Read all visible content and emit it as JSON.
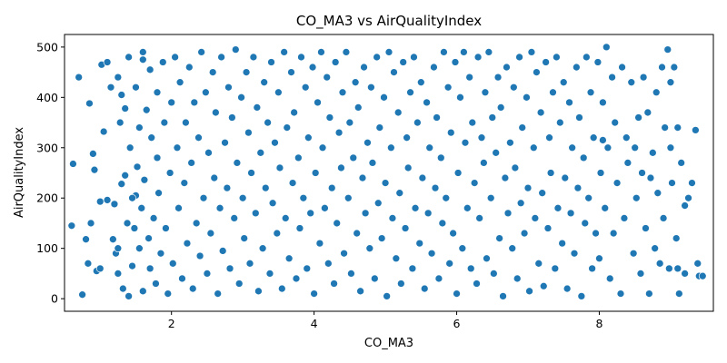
{
  "chart_data": {
    "type": "scatter",
    "title": "CO_MA3 vs AirQualityIndex",
    "xlabel": "CO_MA3",
    "ylabel": "AirQualityIndex",
    "xlim": [
      0.5,
      9.6
    ],
    "ylim": [
      -25,
      525
    ],
    "xticks": [
      2,
      4,
      6,
      8
    ],
    "yticks": [
      0,
      100,
      200,
      300,
      400,
      500
    ],
    "grid": false,
    "marker_color": "#1f77b4",
    "marker_edge_color": "#ffffff",
    "points": [
      [
        0.6,
        145
      ],
      [
        0.62,
        268
      ],
      [
        0.7,
        440
      ],
      [
        0.75,
        8
      ],
      [
        0.8,
        118
      ],
      [
        0.83,
        70
      ],
      [
        0.85,
        388
      ],
      [
        0.87,
        150
      ],
      [
        0.9,
        288
      ],
      [
        0.92,
        256
      ],
      [
        0.95,
        55
      ],
      [
        1.0,
        60
      ],
      [
        1.02,
        465
      ],
      [
        1.0,
        193
      ],
      [
        1.05,
        332
      ],
      [
        1.1,
        470
      ],
      [
        1.1,
        196
      ],
      [
        1.15,
        420
      ],
      [
        1.18,
        118
      ],
      [
        1.2,
        188
      ],
      [
        1.22,
        90
      ],
      [
        1.25,
        440
      ],
      [
        1.25,
        50
      ],
      [
        1.28,
        350
      ],
      [
        1.3,
        228
      ],
      [
        1.3,
        405
      ],
      [
        1.32,
        20
      ],
      [
        1.35,
        245
      ],
      [
        1.35,
        378
      ],
      [
        1.38,
        150
      ],
      [
        1.4,
        480
      ],
      [
        1.4,
        5
      ],
      [
        1.42,
        300
      ],
      [
        1.45,
        65
      ],
      [
        1.48,
        140
      ],
      [
        1.5,
        205
      ],
      [
        1.5,
        420
      ],
      [
        1.52,
        262
      ],
      [
        1.55,
        340
      ],
      [
        1.55,
        100
      ],
      [
        1.58,
        180
      ],
      [
        1.6,
        15
      ],
      [
        1.6,
        490
      ],
      [
        1.62,
        236
      ],
      [
        1.65,
        375
      ],
      [
        1.68,
        120
      ],
      [
        1.7,
        455
      ],
      [
        1.7,
        60
      ],
      [
        1.72,
        320
      ],
      [
        1.75,
        160
      ],
      [
        1.78,
        30
      ],
      [
        1.8,
        410
      ],
      [
        1.8,
        280
      ],
      [
        1.82,
        210
      ],
      [
        1.85,
        90
      ],
      [
        1.88,
        470
      ],
      [
        1.9,
        350
      ],
      [
        1.92,
        140
      ],
      [
        1.95,
        10
      ],
      [
        1.98,
        250
      ],
      [
        2.0,
        390
      ],
      [
        2.02,
        70
      ],
      [
        2.05,
        480
      ],
      [
        2.08,
        300
      ],
      [
        2.1,
        180
      ],
      [
        2.12,
        430
      ],
      [
        2.15,
        40
      ],
      [
        2.18,
        230
      ],
      [
        2.2,
        350
      ],
      [
        2.22,
        110
      ],
      [
        2.25,
        460
      ],
      [
        2.28,
        270
      ],
      [
        2.3,
        20
      ],
      [
        2.32,
        390
      ],
      [
        2.35,
        150
      ],
      [
        2.38,
        320
      ],
      [
        2.4,
        85
      ],
      [
        2.42,
        490
      ],
      [
        2.45,
        200
      ],
      [
        2.48,
        410
      ],
      [
        2.5,
        50
      ],
      [
        2.52,
        290
      ],
      [
        2.55,
        130
      ],
      [
        2.58,
        450
      ],
      [
        2.6,
        240
      ],
      [
        2.62,
        370
      ],
      [
        2.65,
        10
      ],
      [
        2.68,
        180
      ],
      [
        2.7,
        480
      ],
      [
        2.72,
        95
      ],
      [
        2.75,
        310
      ],
      [
        2.78,
        220
      ],
      [
        2.8,
        420
      ],
      [
        2.82,
        60
      ],
      [
        2.85,
        360
      ],
      [
        2.88,
        160
      ],
      [
        2.9,
        495
      ],
      [
        2.92,
        270
      ],
      [
        2.95,
        30
      ],
      [
        2.98,
        400
      ],
      [
        3.0,
        200
      ],
      [
        3.02,
        120
      ],
      [
        3.05,
        450
      ],
      [
        3.08,
        330
      ],
      [
        3.1,
        70
      ],
      [
        3.12,
        250
      ],
      [
        3.15,
        480
      ],
      [
        3.18,
        170
      ],
      [
        3.2,
        380
      ],
      [
        3.22,
        15
      ],
      [
        3.25,
        290
      ],
      [
        3.28,
        100
      ],
      [
        3.3,
        430
      ],
      [
        3.32,
        220
      ],
      [
        3.35,
        350
      ],
      [
        3.38,
        50
      ],
      [
        3.4,
        470
      ],
      [
        3.42,
        190
      ],
      [
        3.45,
        310
      ],
      [
        3.48,
        130
      ],
      [
        3.5,
        410
      ],
      [
        3.52,
        260
      ],
      [
        3.55,
        20
      ],
      [
        3.58,
        490
      ],
      [
        3.6,
        160
      ],
      [
        3.62,
        340
      ],
      [
        3.65,
        80
      ],
      [
        3.68,
        450
      ],
      [
        3.7,
        230
      ],
      [
        3.72,
        370
      ],
      [
        3.75,
        40
      ],
      [
        3.78,
        280
      ],
      [
        3.8,
        140
      ],
      [
        3.82,
        480
      ],
      [
        3.85,
        200
      ],
      [
        3.88,
        420
      ],
      [
        3.9,
        60
      ],
      [
        3.92,
        320
      ],
      [
        3.95,
        170
      ],
      [
        3.98,
        460
      ],
      [
        4.0,
        10
      ],
      [
        4.02,
        250
      ],
      [
        4.05,
        390
      ],
      [
        4.08,
        110
      ],
      [
        4.1,
        490
      ],
      [
        4.12,
        300
      ],
      [
        4.15,
        180
      ],
      [
        4.18,
        440
      ],
      [
        4.2,
        70
      ],
      [
        4.22,
        360
      ],
      [
        4.25,
        220
      ],
      [
        4.28,
        30
      ],
      [
        4.3,
        470
      ],
      [
        4.32,
        150
      ],
      [
        4.35,
        330
      ],
      [
        4.38,
        260
      ],
      [
        4.4,
        410
      ],
      [
        4.42,
        90
      ],
      [
        4.45,
        490
      ],
      [
        4.48,
        200
      ],
      [
        4.5,
        350
      ],
      [
        4.52,
        50
      ],
      [
        4.55,
        280
      ],
      [
        4.58,
        430
      ],
      [
        4.6,
        130
      ],
      [
        4.62,
        380
      ],
      [
        4.65,
        15
      ],
      [
        4.68,
        240
      ],
      [
        4.7,
        460
      ],
      [
        4.72,
        170
      ],
      [
        4.75,
        310
      ],
      [
        4.78,
        100
      ],
      [
        4.8,
        420
      ],
      [
        4.82,
        270
      ],
      [
        4.85,
        40
      ],
      [
        4.88,
        480
      ],
      [
        4.9,
        190
      ],
      [
        4.92,
        340
      ],
      [
        4.95,
        120
      ],
      [
        4.98,
        400
      ],
      [
        5.0,
        230
      ],
      [
        5.02,
        5
      ],
      [
        5.05,
        490
      ],
      [
        5.08,
        300
      ],
      [
        5.1,
        160
      ],
      [
        5.12,
        450
      ],
      [
        5.15,
        80
      ],
      [
        5.18,
        370
      ],
      [
        5.2,
        210
      ],
      [
        5.22,
        30
      ],
      [
        5.25,
        470
      ],
      [
        5.28,
        140
      ],
      [
        5.3,
        320
      ],
      [
        5.32,
        260
      ],
      [
        5.35,
        410
      ],
      [
        5.38,
        60
      ],
      [
        5.4,
        480
      ],
      [
        5.42,
        180
      ],
      [
        5.45,
        350
      ],
      [
        5.48,
        110
      ],
      [
        5.5,
        430
      ],
      [
        5.52,
        240
      ],
      [
        5.55,
        20
      ],
      [
        5.58,
        390
      ],
      [
        5.6,
        170
      ],
      [
        5.62,
        300
      ],
      [
        5.65,
        90
      ],
      [
        5.68,
        460
      ],
      [
        5.7,
        220
      ],
      [
        5.72,
        360
      ],
      [
        5.75,
        40
      ],
      [
        5.78,
        280
      ],
      [
        5.8,
        150
      ],
      [
        5.82,
        490
      ],
      [
        5.85,
        200
      ],
      [
        5.88,
        420
      ],
      [
        5.9,
        70
      ],
      [
        5.92,
        330
      ],
      [
        5.95,
        130
      ],
      [
        5.98,
        470
      ],
      [
        6.0,
        10
      ],
      [
        6.02,
        250
      ],
      [
        6.05,
        400
      ],
      [
        6.08,
        100
      ],
      [
        6.1,
        490
      ],
      [
        6.12,
        310
      ],
      [
        6.15,
        180
      ],
      [
        6.18,
        440
      ],
      [
        6.2,
        60
      ],
      [
        6.22,
        350
      ],
      [
        6.25,
        230
      ],
      [
        6.28,
        30
      ],
      [
        6.3,
        480
      ],
      [
        6.32,
        160
      ],
      [
        6.35,
        320
      ],
      [
        6.38,
        270
      ],
      [
        6.4,
        410
      ],
      [
        6.42,
        80
      ],
      [
        6.45,
        490
      ],
      [
        6.48,
        200
      ],
      [
        6.5,
        360
      ],
      [
        6.52,
        50
      ],
      [
        6.55,
        290
      ],
      [
        6.58,
        440
      ],
      [
        6.6,
        120
      ],
      [
        6.62,
        380
      ],
      [
        6.65,
        5
      ],
      [
        6.68,
        240
      ],
      [
        6.7,
        460
      ],
      [
        6.72,
        170
      ],
      [
        6.75,
        310
      ],
      [
        6.78,
        100
      ],
      [
        6.8,
        420
      ],
      [
        6.82,
        260
      ],
      [
        6.85,
        40
      ],
      [
        6.88,
        480
      ],
      [
        6.9,
        190
      ],
      [
        6.92,
        340
      ],
      [
        6.95,
        130
      ],
      [
        6.98,
        400
      ],
      [
        7.0,
        220
      ],
      [
        7.02,
        15
      ],
      [
        7.05,
        490
      ],
      [
        7.08,
        300
      ],
      [
        7.1,
        160
      ],
      [
        7.12,
        450
      ],
      [
        7.15,
        70
      ],
      [
        7.18,
        370
      ],
      [
        7.2,
        210
      ],
      [
        7.22,
        25
      ],
      [
        7.25,
        470
      ],
      [
        7.28,
        140
      ],
      [
        7.3,
        320
      ],
      [
        7.32,
        250
      ],
      [
        7.35,
        410
      ],
      [
        7.38,
        60
      ],
      [
        7.4,
        480
      ],
      [
        7.42,
        180
      ],
      [
        7.45,
        350
      ],
      [
        7.48,
        110
      ],
      [
        7.5,
        430
      ],
      [
        7.52,
        240
      ],
      [
        7.55,
        20
      ],
      [
        7.58,
        390
      ],
      [
        7.6,
        170
      ],
      [
        7.62,
        300
      ],
      [
        7.65,
        90
      ],
      [
        7.68,
        460
      ],
      [
        7.7,
        220
      ],
      [
        7.72,
        360
      ],
      [
        7.75,
        5
      ],
      [
        7.78,
        280
      ],
      [
        7.8,
        150
      ],
      [
        7.82,
        480
      ],
      [
        7.85,
        200
      ],
      [
        7.88,
        410
      ],
      [
        7.9,
        60
      ],
      [
        7.92,
        320
      ],
      [
        7.95,
        130
      ],
      [
        7.98,
        470
      ],
      [
        8.0,
        80
      ],
      [
        8.02,
        250
      ],
      [
        8.05,
        390
      ],
      [
        8.08,
        180
      ],
      [
        8.1,
        500
      ],
      [
        8.12,
        300
      ],
      [
        8.15,
        40
      ],
      [
        8.18,
        440
      ],
      [
        8.2,
        130
      ],
      [
        8.22,
        350
      ],
      [
        8.25,
        230
      ],
      [
        8.3,
        10
      ],
      [
        8.32,
        460
      ],
      [
        8.35,
        160
      ],
      [
        8.38,
        320
      ],
      [
        8.4,
        270
      ],
      [
        8.45,
        430
      ],
      [
        8.48,
        90
      ],
      [
        8.5,
        300
      ],
      [
        8.52,
        200
      ],
      [
        8.55,
        360
      ],
      [
        8.58,
        50
      ],
      [
        8.6,
        250
      ],
      [
        8.62,
        440
      ],
      [
        8.65,
        140
      ],
      [
        8.68,
        370
      ],
      [
        8.7,
        10
      ],
      [
        8.72,
        240
      ],
      [
        8.75,
        290
      ],
      [
        8.78,
        100
      ],
      [
        8.8,
        410
      ],
      [
        8.82,
        210
      ],
      [
        8.85,
        70
      ],
      [
        8.88,
        460
      ],
      [
        8.9,
        160
      ],
      [
        8.92,
        340
      ],
      [
        8.95,
        495
      ],
      [
        8.98,
        60
      ],
      [
        9.0,
        300
      ],
      [
        9.02,
        230
      ],
      [
        9.05,
        460
      ],
      [
        9.08,
        120
      ],
      [
        9.1,
        340
      ],
      [
        9.12,
        10
      ],
      [
        9.15,
        270
      ],
      [
        9.2,
        50
      ],
      [
        9.25,
        200
      ],
      [
        9.3,
        230
      ],
      [
        9.35,
        335
      ],
      [
        9.38,
        70
      ],
      [
        9.4,
        45
      ],
      [
        9.45,
        45
      ],
      [
        9.2,
        185
      ],
      [
        9.0,
        430
      ],
      [
        8.96,
        495
      ],
      [
        1.6,
        475
      ],
      [
        1.45,
        200
      ],
      [
        1.25,
        100
      ],
      [
        9.1,
        60
      ],
      [
        8.05,
        315
      ]
    ]
  }
}
